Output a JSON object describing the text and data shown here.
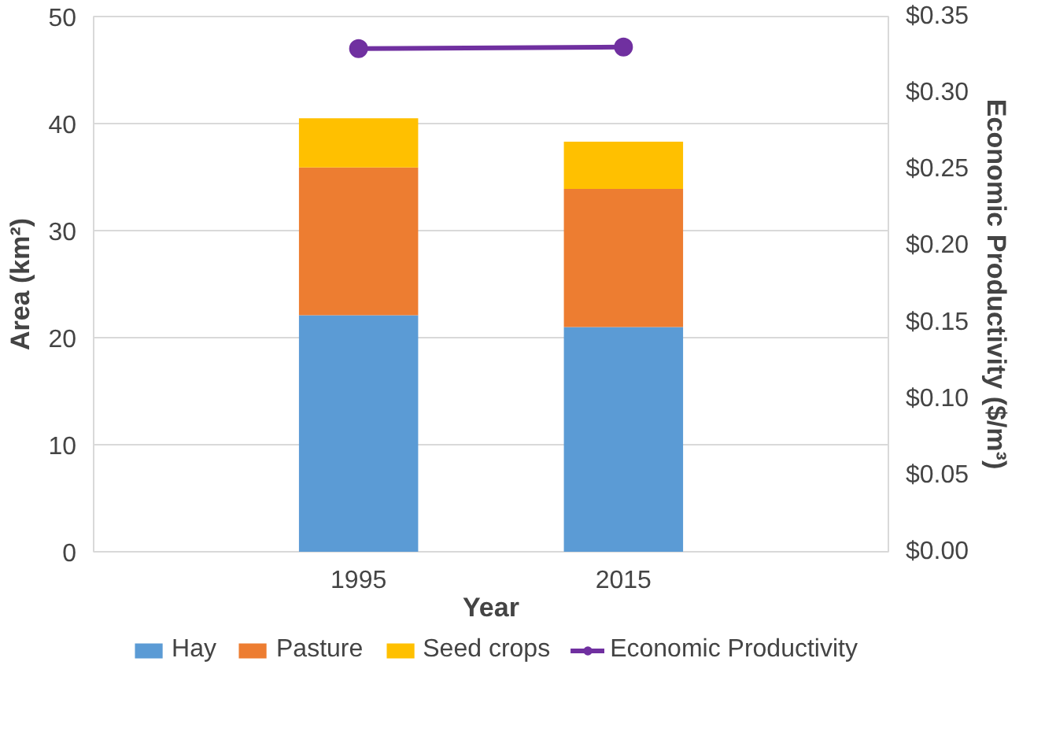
{
  "chart_data": {
    "type": "bar",
    "stacked": true,
    "xlabel": "Year",
    "ylabel": "Area (km²)",
    "y2label": "Economic Productivity ($/m³)",
    "categories": [
      "1995",
      "2015"
    ],
    "series": [
      {
        "name": "Hay",
        "color": "#5b9bd5",
        "values": [
          22.1,
          21.0
        ]
      },
      {
        "name": "Pasture",
        "color": "#ed7d31",
        "values": [
          13.8,
          12.9
        ]
      },
      {
        "name": "Seed crops",
        "color": "#ffc000",
        "values": [
          4.6,
          4.4
        ]
      },
      {
        "name": "Economic Productivity",
        "type": "line",
        "axis": "y2",
        "color": "#7030a0",
        "marker": "circle",
        "values": [
          0.329,
          0.33
        ]
      }
    ],
    "ylim": [
      0,
      50
    ],
    "yticks": [
      0,
      10,
      20,
      30,
      40,
      50
    ],
    "y2lim": [
      0,
      0.35
    ],
    "y2ticks": [
      {
        "value": 0,
        "label": "$0.00"
      },
      {
        "value": 0.05,
        "label": "$0.05"
      },
      {
        "value": 0.1,
        "label": "$0.10"
      },
      {
        "value": 0.15,
        "label": "$0.15"
      },
      {
        "value": 0.2,
        "label": "$0.20"
      },
      {
        "value": 0.25,
        "label": "$0.25"
      },
      {
        "value": 0.3,
        "label": "$0.30"
      },
      {
        "value": 0.35,
        "label": "$0.35"
      }
    ],
    "grid": "y",
    "legend": "bottom"
  }
}
